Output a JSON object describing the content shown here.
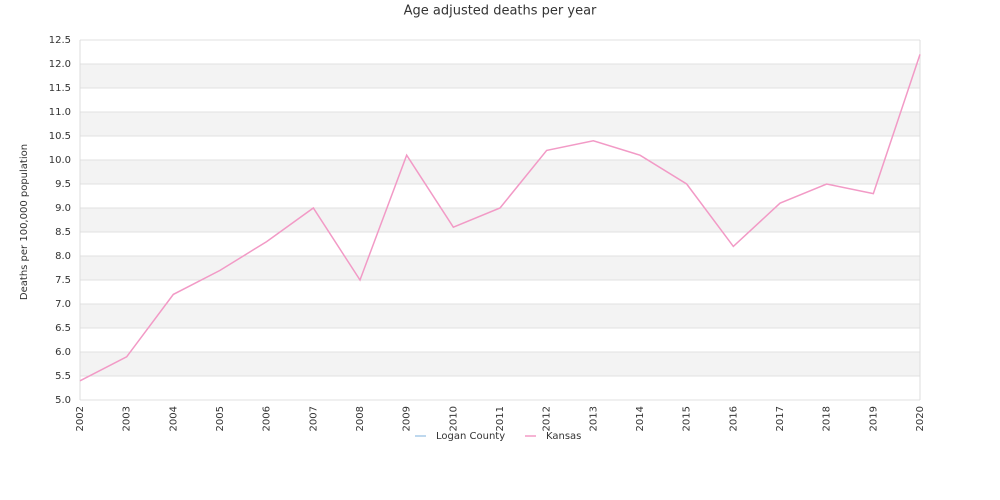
{
  "chart_data": {
    "type": "line",
    "title": "Age adjusted deaths per year",
    "y_label": "Deaths per 100,000 population",
    "categories": [
      "2002",
      "2003",
      "2004",
      "2005",
      "2006",
      "2007",
      "2008",
      "2009",
      "2010",
      "2011",
      "2012",
      "2013",
      "2014",
      "2015",
      "2016",
      "2017",
      "2018",
      "2019",
      "2020"
    ],
    "series": [
      {
        "name": "Logan County",
        "color": "#a8cbe8",
        "values": [
          null,
          null,
          null,
          null,
          null,
          null,
          null,
          null,
          null,
          null,
          null,
          null,
          null,
          null,
          null,
          null,
          null,
          null,
          null
        ]
      },
      {
        "name": "Kansas",
        "color": "#f29ac6",
        "values": [
          5.4,
          5.9,
          7.2,
          7.7,
          8.3,
          9.0,
          7.5,
          10.1,
          8.6,
          9.0,
          10.2,
          10.4,
          10.1,
          9.5,
          8.2,
          9.1,
          9.5,
          9.3,
          12.2
        ]
      }
    ],
    "ylim": [
      5,
      12.5
    ],
    "yticks": [
      {
        "value": 5,
        "label": "5.0"
      },
      5.5,
      {
        "value": 6,
        "label": "6.0"
      },
      6.5,
      {
        "value": 7,
        "label": "7.0"
      },
      7.5,
      {
        "value": 8,
        "label": "8.0"
      },
      8.5,
      {
        "value": 9,
        "label": "9.0"
      },
      9.5,
      {
        "value": 10,
        "label": "10.0"
      },
      10.5,
      {
        "value": 11,
        "label": "11.0"
      },
      11.5,
      {
        "value": 12,
        "label": "12.0"
      },
      12.5
    ],
    "grid": true,
    "legend": "bottom"
  }
}
